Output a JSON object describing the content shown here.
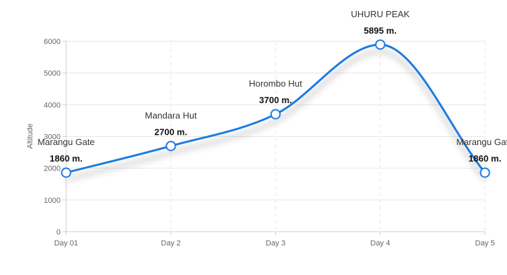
{
  "chart_data": {
    "type": "line",
    "ylabel": "Altitude",
    "xlabel": "",
    "categories": [
      "Day 01",
      "Day 2",
      "Day 3",
      "Day 4",
      "Day 5"
    ],
    "values": [
      1860,
      2700,
      3700,
      5895,
      1860
    ],
    "point_names": [
      "Marangu Gate",
      "Mandara Hut",
      "Horombo Hut",
      "UHURU PEAK",
      "Marangu Gate"
    ],
    "value_labels": [
      "1860 m.",
      "2700 m.",
      "3700 m.",
      "5895 m.",
      "1860 m."
    ],
    "ylim": [
      0,
      6000
    ],
    "yticks": [
      "0",
      "1000",
      "2000",
      "3000",
      "4000",
      "5000",
      "6000"
    ],
    "grid": true,
    "line_color": "#1f7ae0"
  }
}
